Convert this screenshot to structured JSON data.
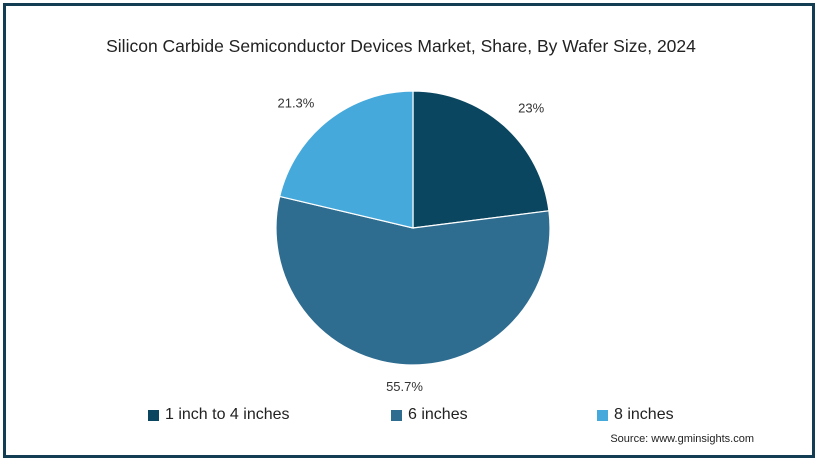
{
  "chart_data": {
    "type": "pie",
    "title": "Silicon Carbide Semiconductor Devices Market, Share, By Wafer Size, 2024",
    "categories": [
      "1 inch to 4 inches",
      "6 inches",
      "8 inches"
    ],
    "values": [
      23,
      55.7,
      21.3
    ],
    "value_labels": [
      "23%",
      "55.7%",
      "21.3%"
    ],
    "colors": [
      "#0b4660",
      "#2e6c90",
      "#45a9dc"
    ],
    "legend_position": "bottom"
  },
  "source": "Source: www.gminsights.com"
}
